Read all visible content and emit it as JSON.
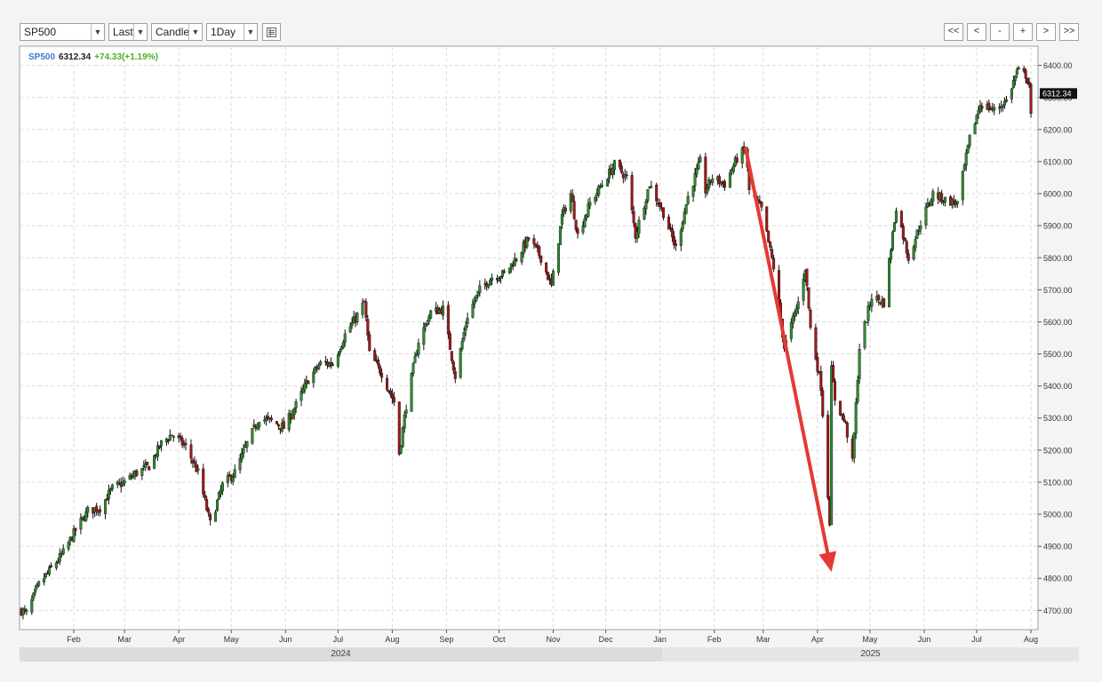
{
  "toolbar": {
    "symbol": "SP500",
    "price_field": "Last",
    "chart_type": "Candle",
    "interval": "1Day",
    "settings_icon": "list-icon",
    "nav": [
      "<<",
      "<",
      "-",
      "+",
      ">",
      ">>"
    ]
  },
  "legend": {
    "symbol": "SP500",
    "last": "6312.34",
    "change": "+74.33(+1.19%)",
    "symbol_color": "#3a7bd5",
    "change_color": "#4caf2a"
  },
  "last_price_tag": "6312.34",
  "years": [
    "2024",
    "2025"
  ],
  "colors": {
    "up": "#2e8b2e",
    "down": "#a01818",
    "wick": "#111111",
    "arrow": "#e53935",
    "grid": "#dddddd"
  },
  "chart_data": {
    "type": "candlestick",
    "y_axis": {
      "min": 4640,
      "max": 6460,
      "ticks": [
        "6400.00",
        "6300.00",
        "6200.00",
        "6100.00",
        "6000.00",
        "5900.00",
        "5800.00",
        "5700.00",
        "5600.00",
        "5500.00",
        "5400.00",
        "5300.00",
        "5200.00",
        "5100.00",
        "5000.00",
        "4900.00",
        "4800.00",
        "4700.00"
      ]
    },
    "x_axis": {
      "start": "2024-01-01",
      "end": "2025-08-03",
      "month_labels": [
        {
          "label": "Feb",
          "date": "2024-02-01"
        },
        {
          "label": "Mar",
          "date": "2024-03-01"
        },
        {
          "label": "Apr",
          "date": "2024-04-01"
        },
        {
          "label": "May",
          "date": "2024-05-01"
        },
        {
          "label": "Jun",
          "date": "2024-06-01"
        },
        {
          "label": "Jul",
          "date": "2024-07-01"
        },
        {
          "label": "Aug",
          "date": "2024-08-01"
        },
        {
          "label": "Sep",
          "date": "2024-09-01"
        },
        {
          "label": "Oct",
          "date": "2024-10-01"
        },
        {
          "label": "Nov",
          "date": "2024-11-01"
        },
        {
          "label": "Dec",
          "date": "2024-12-01"
        },
        {
          "label": "Jan",
          "date": "2025-01-01"
        },
        {
          "label": "Feb",
          "date": "2025-02-01"
        },
        {
          "label": "Mar",
          "date": "2025-03-01"
        },
        {
          "label": "Apr",
          "date": "2025-04-01"
        },
        {
          "label": "May",
          "date": "2025-05-01"
        },
        {
          "label": "Jun",
          "date": "2025-06-01"
        },
        {
          "label": "Jul",
          "date": "2025-07-01"
        },
        {
          "label": "Aug",
          "date": "2025-08-01"
        }
      ]
    },
    "close_path": [
      [
        "2024-01-02",
        4700
      ],
      [
        "2024-01-05",
        4690
      ],
      [
        "2024-01-12",
        4780
      ],
      [
        "2024-01-19",
        4830
      ],
      [
        "2024-01-26",
        4880
      ],
      [
        "2024-02-02",
        4950
      ],
      [
        "2024-02-09",
        5010
      ],
      [
        "2024-02-16",
        5020
      ],
      [
        "2024-02-23",
        5080
      ],
      [
        "2024-03-01",
        5100
      ],
      [
        "2024-03-08",
        5130
      ],
      [
        "2024-03-15",
        5150
      ],
      [
        "2024-03-22",
        5220
      ],
      [
        "2024-03-28",
        5250
      ],
      [
        "2024-04-05",
        5210
      ],
      [
        "2024-04-12",
        5130
      ],
      [
        "2024-04-19",
        4970
      ],
      [
        "2024-04-26",
        5090
      ],
      [
        "2024-05-03",
        5130
      ],
      [
        "2024-05-10",
        5220
      ],
      [
        "2024-05-17",
        5300
      ],
      [
        "2024-05-24",
        5290
      ],
      [
        "2024-05-31",
        5270
      ],
      [
        "2024-06-07",
        5340
      ],
      [
        "2024-06-14",
        5420
      ],
      [
        "2024-06-21",
        5470
      ],
      [
        "2024-06-28",
        5470
      ],
      [
        "2024-07-05",
        5560
      ],
      [
        "2024-07-12",
        5620
      ],
      [
        "2024-07-16",
        5660
      ],
      [
        "2024-07-19",
        5500
      ],
      [
        "2024-07-26",
        5440
      ],
      [
        "2024-08-02",
        5350
      ],
      [
        "2024-08-05",
        5190
      ],
      [
        "2024-08-09",
        5340
      ],
      [
        "2024-08-16",
        5540
      ],
      [
        "2024-08-23",
        5630
      ],
      [
        "2024-08-30",
        5640
      ],
      [
        "2024-09-06",
        5430
      ],
      [
        "2024-09-13",
        5620
      ],
      [
        "2024-09-20",
        5700
      ],
      [
        "2024-09-27",
        5740
      ],
      [
        "2024-10-04",
        5750
      ],
      [
        "2024-10-11",
        5800
      ],
      [
        "2024-10-18",
        5860
      ],
      [
        "2024-10-25",
        5800
      ],
      [
        "2024-10-31",
        5710
      ],
      [
        "2024-11-06",
        5930
      ],
      [
        "2024-11-11",
        6000
      ],
      [
        "2024-11-15",
        5870
      ],
      [
        "2024-11-22",
        5970
      ],
      [
        "2024-11-29",
        6030
      ],
      [
        "2024-12-06",
        6090
      ],
      [
        "2024-12-13",
        6050
      ],
      [
        "2024-12-18",
        5870
      ],
      [
        "2024-12-26",
        6030
      ],
      [
        "2025-01-03",
        5940
      ],
      [
        "2025-01-10",
        5830
      ],
      [
        "2025-01-17",
        5990
      ],
      [
        "2025-01-24",
        6100
      ],
      [
        "2025-01-27",
        6010
      ],
      [
        "2025-01-31",
        6050
      ],
      [
        "2025-02-07",
        6030
      ],
      [
        "2025-02-14",
        6110
      ],
      [
        "2025-02-19",
        6140
      ],
      [
        "2025-02-21",
        6010
      ],
      [
        "2025-02-28",
        5950
      ],
      [
        "2025-03-07",
        5770
      ],
      [
        "2025-03-13",
        5520
      ],
      [
        "2025-03-21",
        5660
      ],
      [
        "2025-03-25",
        5770
      ],
      [
        "2025-03-28",
        5580
      ],
      [
        "2025-04-03",
        5400
      ],
      [
        "2025-04-07",
        5060
      ],
      [
        "2025-04-08",
        4980
      ],
      [
        "2025-04-09",
        5450
      ],
      [
        "2025-04-11",
        5360
      ],
      [
        "2025-04-17",
        5280
      ],
      [
        "2025-04-21",
        5160
      ],
      [
        "2025-04-25",
        5520
      ],
      [
        "2025-05-02",
        5680
      ],
      [
        "2025-05-09",
        5660
      ],
      [
        "2025-05-16",
        5960
      ],
      [
        "2025-05-23",
        5800
      ],
      [
        "2025-05-30",
        5910
      ],
      [
        "2025-06-06",
        6000
      ],
      [
        "2025-06-13",
        5980
      ],
      [
        "2025-06-20",
        5970
      ],
      [
        "2025-06-27",
        6170
      ],
      [
        "2025-07-03",
        6280
      ],
      [
        "2025-07-11",
        6260
      ],
      [
        "2025-07-18",
        6290
      ],
      [
        "2025-07-24",
        6380
      ],
      [
        "2025-07-29",
        6370
      ],
      [
        "2025-07-31",
        6340
      ],
      [
        "2025-08-01",
        6238
      ],
      [
        "2025-08-03",
        6312
      ]
    ],
    "annotations": [
      {
        "type": "arrow",
        "from": [
          "2025-02-19",
          6140
        ],
        "to": [
          "2025-04-09",
          4820
        ]
      }
    ]
  }
}
